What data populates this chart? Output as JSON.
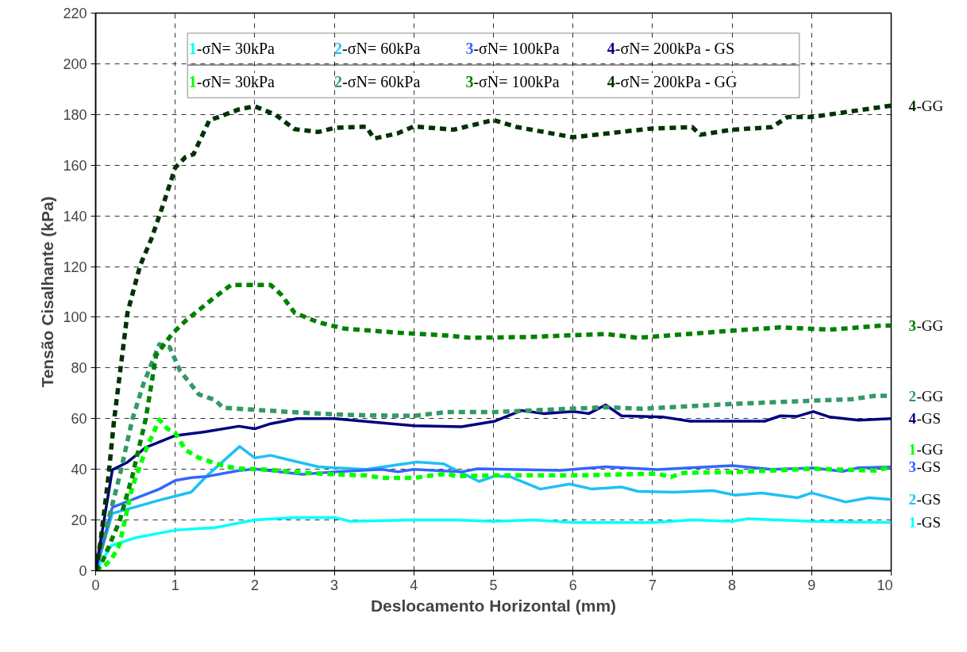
{
  "chart_data": {
    "type": "line",
    "xlabel": "Deslocamento Horizontal (mm)",
    "ylabel": "Tensão Cisalhante (kPa)",
    "xlim": [
      0,
      10
    ],
    "ylim": [
      0,
      220
    ],
    "xticks": [
      0,
      1,
      2,
      3,
      4,
      5,
      6,
      7,
      8,
      9,
      10
    ],
    "yticks": [
      0,
      20,
      40,
      60,
      80,
      100,
      120,
      140,
      160,
      180,
      200,
      220
    ],
    "grid": true,
    "legend": false,
    "annotations": [
      "1-σN= 30kPa",
      "2-σN= 60kPa",
      "3-σN= 100kPa",
      "4-σN= 200kPa - GS",
      "1-σN= 30kPa",
      "2-σN= 60kPa",
      "3-σN= 100kPa",
      "4-σN= 200kPa - GG"
    ],
    "series": [
      {
        "name": "1-GS",
        "color": "#00ffff",
        "line_style": "solid",
        "x": [
          0,
          0.2,
          0.5,
          1,
          1.5,
          2,
          2.5,
          3,
          3.2,
          4,
          4.5,
          5,
          5.5,
          6,
          7,
          7.5,
          8,
          8.2,
          9,
          10
        ],
        "values": [
          0,
          10,
          13,
          16,
          17,
          20,
          21,
          21,
          19.5,
          20,
          20,
          19.5,
          20,
          19,
          19,
          20,
          19.5,
          20.5,
          19.5,
          19
        ]
      },
      {
        "name": "2-GS",
        "color": "#1ec0f5",
        "line_style": "solid",
        "x": [
          0,
          0.21,
          0.8,
          1.0,
          1.2,
          1.4,
          1.81,
          2.0,
          2.2,
          2.46,
          2.8,
          3.0,
          3.4,
          4.04,
          4.37,
          4.82,
          5.02,
          5.22,
          5.59,
          5.96,
          6.24,
          6.61,
          6.82,
          7.27,
          7.76,
          8.04,
          8.37,
          8.82,
          9.0,
          9.43,
          9.72,
          10.0
        ],
        "values": [
          0,
          22.6,
          27.8,
          29.4,
          31,
          37.5,
          49,
          44.5,
          45.5,
          43.5,
          41,
          40.6,
          40,
          42.9,
          42.2,
          35.2,
          37.4,
          37,
          32.2,
          34.2,
          32.2,
          33,
          31.3,
          31,
          31.6,
          29.8,
          30.7,
          28.8,
          30.7,
          27.1,
          28.8,
          28.1
        ]
      },
      {
        "name": "3-GS",
        "color": "#3366ff",
        "line_style": "solid",
        "x": [
          0,
          0.21,
          0.8,
          1.0,
          1.2,
          1.4,
          1.8,
          2.0,
          2.6,
          3.0,
          3.6,
          3.8,
          4.0,
          4.6,
          4.8,
          5.84,
          6.41,
          7.06,
          8.0,
          8.49,
          9.02,
          9.39,
          9.59,
          10.0
        ],
        "values": [
          0,
          25,
          32.2,
          35.6,
          36.7,
          37.2,
          39.5,
          40.1,
          38,
          39,
          40,
          39,
          40,
          39,
          40.2,
          39.6,
          41,
          39.9,
          41.5,
          40,
          40.5,
          39.2,
          40.6,
          40.9
        ]
      },
      {
        "name": "4-GS",
        "color": "#000080",
        "line_style": "solid",
        "x": [
          0,
          0.21,
          0.4,
          0.63,
          1.0,
          1.4,
          1.8,
          2.0,
          2.2,
          2.53,
          3.0,
          4.0,
          4.6,
          5.02,
          5.35,
          5.63,
          6.0,
          6.2,
          6.41,
          6.61,
          7.14,
          7.47,
          8.41,
          8.61,
          8.82,
          9.02,
          9.23,
          9.59,
          10.0
        ],
        "values": [
          0,
          39.8,
          42.8,
          48.6,
          53.3,
          54.9,
          57,
          56,
          58,
          60,
          60,
          57.2,
          56.8,
          59,
          63.2,
          62,
          62.8,
          62,
          65.4,
          61.1,
          60.6,
          59,
          59,
          61.1,
          60.9,
          62.8,
          60.6,
          59.4,
          60
        ]
      },
      {
        "name": "1-GG",
        "color": "#00ff00",
        "line_style": "dashed",
        "x": [
          0,
          0.05,
          0.2,
          0.3,
          0.46,
          0.63,
          0.8,
          0.9,
          1.0,
          1.13,
          1.3,
          1.6,
          1.8,
          2.2,
          2.6,
          3.0,
          3.4,
          3.6,
          4.0,
          4.41,
          4.53,
          5.02,
          6.04,
          7.06,
          7.23,
          7.39,
          8.0,
          9.02,
          9.8,
          10.0
        ],
        "values": [
          0,
          0,
          4.6,
          10.3,
          33,
          47.6,
          59.6,
          56,
          54.4,
          47.6,
          44.5,
          41.4,
          40.3,
          39.8,
          38.7,
          38,
          37.6,
          36.6,
          36.6,
          38.3,
          37.3,
          37.6,
          37.6,
          38.3,
          37,
          38.6,
          38.9,
          40.2,
          39.5,
          41
        ]
      },
      {
        "name": "2-GG",
        "color": "#339966",
        "line_style": "dashed",
        "x": [
          0,
          0.13,
          0.3,
          0.46,
          0.6,
          0.8,
          0.93,
          1.06,
          1.3,
          1.5,
          1.6,
          2.0,
          2.4,
          3.0,
          3.4,
          4.0,
          4.41,
          5.02,
          6.41,
          6.86,
          8.0,
          9.51,
          9.8,
          10.0
        ],
        "values": [
          0,
          16.3,
          37.2,
          59.6,
          73.6,
          89.3,
          88.2,
          78.9,
          69.5,
          67.4,
          64.3,
          63.5,
          62.7,
          61.7,
          61.3,
          61.1,
          62.6,
          62.6,
          64.5,
          63.9,
          65.8,
          67.7,
          69,
          69
        ]
      },
      {
        "name": "3-GG",
        "color": "#008000",
        "line_style": "dashed",
        "x": [
          0,
          0.06,
          0.3,
          0.46,
          0.63,
          0.76,
          0.96,
          1.13,
          1.46,
          1.7,
          2.2,
          2.33,
          2.5,
          2.8,
          3.13,
          3.8,
          4.41,
          4.7,
          5.43,
          6.41,
          6.82,
          8.0,
          8.61,
          9.23,
          9.88,
          10.0
        ],
        "values": [
          0,
          1.8,
          19.5,
          37.2,
          60,
          85,
          93.4,
          98.6,
          107,
          112.7,
          112.7,
          109,
          101.8,
          98,
          95.5,
          93.9,
          92.8,
          91.9,
          92.2,
          93.4,
          91.9,
          94.7,
          96,
          95.1,
          96.7,
          96.7
        ]
      },
      {
        "name": "4-GG",
        "color": "#003300",
        "line_style": "dashed",
        "x": [
          0,
          0.06,
          0.16,
          0.23,
          0.4,
          0.56,
          0.7,
          0.86,
          1.0,
          1.13,
          1.23,
          1.43,
          1.53,
          1.8,
          2.0,
          2.26,
          2.5,
          2.8,
          3.0,
          3.4,
          3.5,
          3.8,
          4.0,
          4.5,
          5.0,
          5.3,
          6.0,
          7.0,
          7.5,
          7.6,
          8.0,
          8.5,
          8.7,
          9.0,
          10.0
        ],
        "values": [
          0,
          11.1,
          37,
          59,
          101.8,
          120.5,
          130.9,
          145.5,
          159,
          163.2,
          164.3,
          177.8,
          178.8,
          182,
          183.2,
          179.9,
          174.2,
          173.1,
          174.7,
          175.2,
          170.5,
          172.6,
          175.3,
          174,
          177.8,
          175,
          171,
          174.5,
          175,
          172,
          174,
          175,
          179,
          179,
          183.5
        ]
      }
    ]
  }
}
